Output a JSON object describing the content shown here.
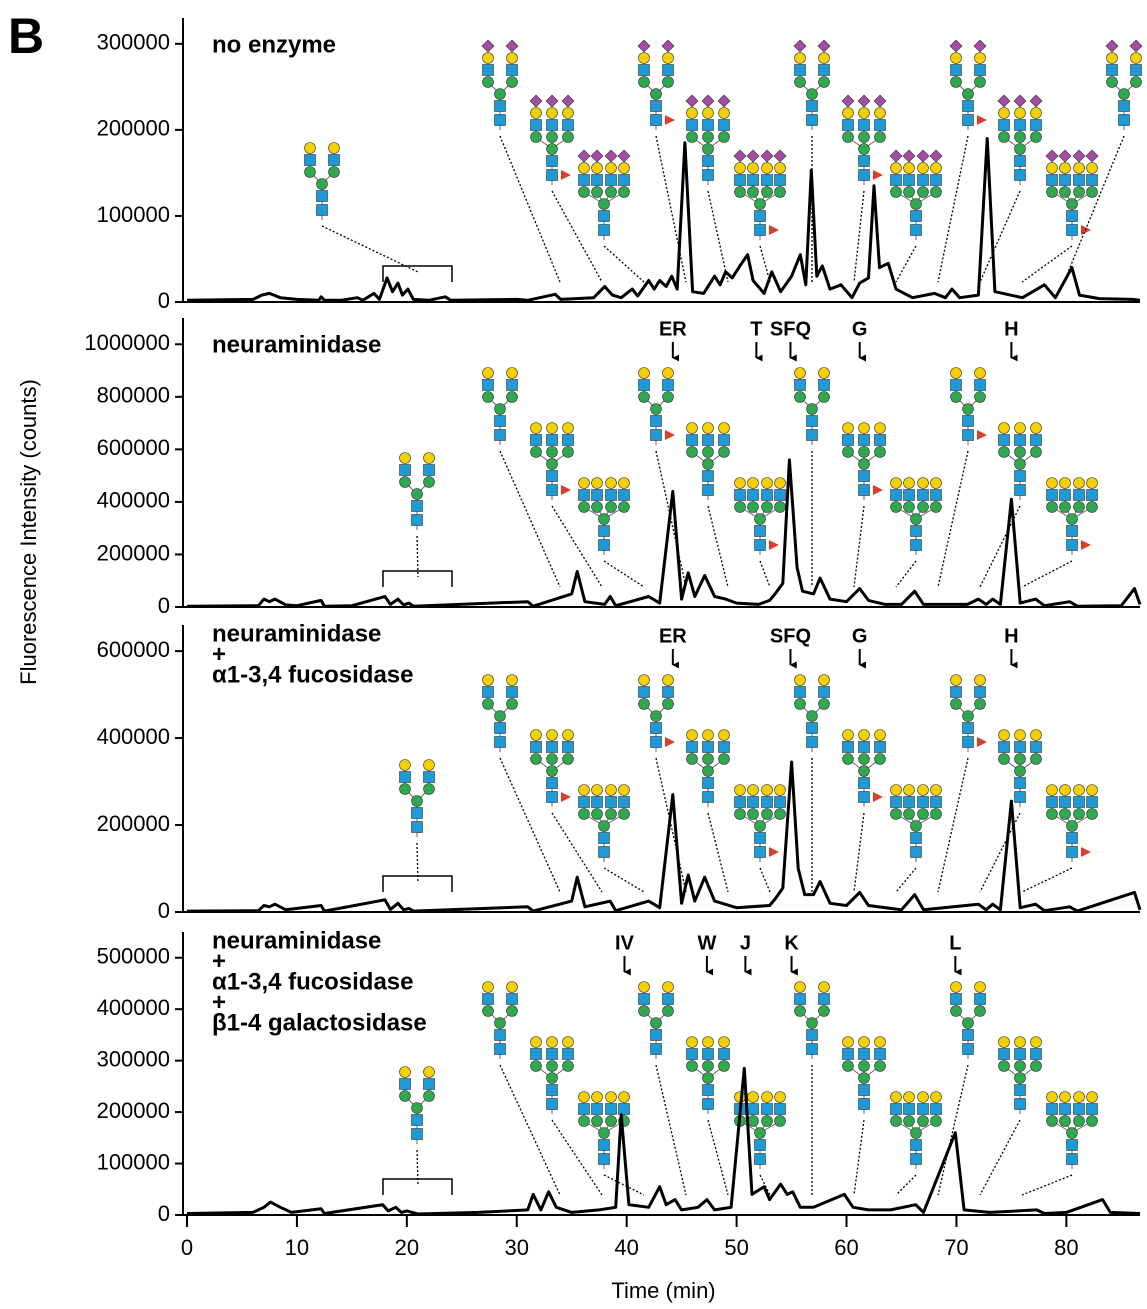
{
  "panel_label": "B",
  "ylabel": "Fluorescence Intensity (counts)",
  "chart_data": [
    {
      "type": "line",
      "title": [
        "no enzyme"
      ],
      "xlim": [
        0,
        86.7
      ],
      "ylim": [
        0,
        330000
      ],
      "yticks": [
        0,
        100000,
        200000,
        300000
      ],
      "x": [
        0,
        6,
        6.8,
        7.5,
        8.5,
        10,
        12,
        12.2,
        12.5,
        14,
        15.5,
        16,
        17,
        17.5,
        18.2,
        18.7,
        19.2,
        19.6,
        20.1,
        20.6,
        22,
        23.5,
        24,
        30,
        31,
        33.5,
        34,
        37,
        38,
        38.7,
        39.5,
        40.5,
        41,
        42,
        42.5,
        43,
        43.6,
        44.1,
        44.6,
        45.3,
        46,
        47,
        48,
        48.5,
        49,
        49.6,
        50.3,
        51,
        51.5,
        52.5,
        53.2,
        54,
        55,
        55.8,
        56.3,
        56.8,
        57.3,
        57.8,
        58.5,
        59.5,
        60.5,
        61.2,
        62,
        62.5,
        63,
        63.8,
        64.5,
        66,
        68,
        69,
        69.6,
        70.3,
        72,
        72.8,
        73.5,
        76,
        78,
        79,
        80.5,
        81.2,
        83,
        86,
        86.7
      ],
      "series": [
        {
          "color": "#000000",
          "values": [
            2000,
            3000,
            8000,
            10000,
            5000,
            3000,
            2000,
            6000,
            2000,
            2000,
            5000,
            2000,
            10000,
            3000,
            28000,
            12000,
            22000,
            8000,
            15000,
            3000,
            2000,
            6000,
            2000,
            3000,
            2000,
            9000,
            3000,
            5000,
            18000,
            8000,
            5000,
            15000,
            7000,
            25000,
            15000,
            25000,
            18000,
            30000,
            15000,
            185000,
            12000,
            10000,
            30000,
            20000,
            35000,
            28000,
            42000,
            55000,
            25000,
            10000,
            35000,
            12000,
            30000,
            55000,
            20000,
            153000,
            30000,
            42000,
            15000,
            20000,
            5000,
            22000,
            28000,
            135000,
            40000,
            45000,
            15000,
            5000,
            10000,
            5000,
            15000,
            5000,
            8000,
            190000,
            12000,
            5000,
            20000,
            5000,
            40000,
            8000,
            4000,
            3000,
            2000
          ]
        }
      ],
      "annotations": []
    },
    {
      "type": "line",
      "title": [
        "neuraminidase"
      ],
      "xlim": [
        0,
        86.7
      ],
      "ylim": [
        0,
        1100000
      ],
      "yticks": [
        0,
        200000,
        400000,
        600000,
        800000,
        1000000
      ],
      "x": [
        0,
        6.5,
        7,
        7.5,
        8,
        9,
        10,
        12.2,
        12.5,
        15,
        18,
        18.5,
        19.2,
        19.7,
        20.2,
        20.6,
        31,
        31.5,
        35,
        35.5,
        36.2,
        38,
        38.5,
        39,
        42,
        43,
        44.2,
        45,
        45.6,
        46.2,
        47.1,
        48,
        49,
        50,
        52,
        53,
        53.5,
        54.2,
        54.8,
        55.5,
        56,
        57,
        57.6,
        58.5,
        60,
        61.2,
        62,
        63.5,
        65,
        66.2,
        67,
        71,
        72,
        72.7,
        73.3,
        74,
        75,
        75.8,
        77.2,
        78,
        80.3,
        81,
        85,
        86.2,
        86.7
      ],
      "series": [
        {
          "color": "#000000",
          "values": [
            3000,
            5000,
            30000,
            20000,
            30000,
            8000,
            5000,
            25000,
            3000,
            5000,
            40000,
            10000,
            30000,
            8000,
            15000,
            3000,
            20000,
            3000,
            50000,
            135000,
            20000,
            10000,
            40000,
            5000,
            40000,
            15000,
            440000,
            30000,
            130000,
            40000,
            120000,
            40000,
            30000,
            15000,
            10000,
            25000,
            50000,
            90000,
            560000,
            150000,
            60000,
            50000,
            110000,
            30000,
            20000,
            70000,
            25000,
            10000,
            10000,
            60000,
            10000,
            10000,
            30000,
            10000,
            30000,
            10000,
            410000,
            15000,
            30000,
            5000,
            20000,
            3000,
            5000,
            70000,
            10000
          ]
        }
      ],
      "annotations": [
        {
          "text": "ER",
          "x": 44.2
        },
        {
          "text": "T",
          "x": 51.8
        },
        {
          "text": "SFQ",
          "x": 54.9
        },
        {
          "text": "G",
          "x": 61.2
        },
        {
          "text": "H",
          "x": 75
        }
      ]
    },
    {
      "type": "line",
      "title": [
        "neuraminidase",
        "+",
        "α1-3,4 fucosidase"
      ],
      "xlim": [
        0,
        86.7
      ],
      "ylim": [
        0,
        660000
      ],
      "yticks": [
        0,
        200000,
        400000,
        600000
      ],
      "x": [
        0,
        6.5,
        7,
        7.5,
        8,
        9,
        12.2,
        12.5,
        18,
        18.5,
        19.2,
        19.7,
        20.2,
        20.6,
        31,
        31.5,
        35,
        35.5,
        36.2,
        38.5,
        39,
        42,
        43,
        44.2,
        45,
        45.6,
        46.2,
        47.1,
        48,
        50,
        53,
        53.5,
        54.2,
        55,
        55.6,
        56.2,
        57,
        57.6,
        58.5,
        60,
        61.2,
        62,
        65,
        66.2,
        67,
        72,
        72.7,
        73.3,
        74,
        75,
        75.8,
        77.2,
        78,
        80.3,
        81,
        86.2,
        86.7
      ],
      "series": [
        {
          "color": "#000000",
          "values": [
            2000,
            3000,
            15000,
            12000,
            18000,
            5000,
            15000,
            2000,
            28000,
            6000,
            20000,
            5000,
            8000,
            2000,
            12000,
            2000,
            25000,
            80000,
            12000,
            25000,
            3000,
            25000,
            10000,
            270000,
            20000,
            85000,
            25000,
            80000,
            25000,
            10000,
            15000,
            30000,
            55000,
            345000,
            100000,
            40000,
            40000,
            70000,
            20000,
            15000,
            45000,
            15000,
            5000,
            40000,
            5000,
            18000,
            5000,
            18000,
            5000,
            255000,
            10000,
            18000,
            3000,
            12000,
            2000,
            45000,
            5000
          ]
        }
      ],
      "annotations": [
        {
          "text": "ER",
          "x": 44.2
        },
        {
          "text": "SFQ",
          "x": 54.9
        },
        {
          "text": "G",
          "x": 61.2
        },
        {
          "text": "H",
          "x": 75
        }
      ]
    },
    {
      "type": "line",
      "title": [
        "neuraminidase",
        "+",
        "α1-3,4 fucosidase",
        "+",
        "β1-4 galactosidase"
      ],
      "xlim": [
        0,
        86.7
      ],
      "ylim": [
        0,
        550000
      ],
      "yticks": [
        0,
        100000,
        200000,
        300000,
        400000,
        500000
      ],
      "xticks": [
        0,
        10,
        20,
        30,
        40,
        50,
        60,
        70,
        80
      ],
      "xlabel": "Time (min)",
      "x": [
        0,
        6,
        7,
        7.6,
        8.5,
        9.5,
        12.2,
        12.5,
        17.8,
        18.3,
        19,
        19.5,
        20,
        21,
        26.5,
        31,
        31.5,
        32.2,
        32.9,
        33.6,
        35,
        37.5,
        39,
        39.5,
        40.2,
        42,
        43,
        43.6,
        44.4,
        45,
        46.5,
        47.3,
        48,
        49.5,
        50.7,
        51.4,
        52.5,
        53,
        54,
        54.6,
        55.1,
        55.8,
        57,
        59.8,
        60.6,
        62,
        64,
        66.3,
        67,
        69.9,
        70.7,
        73,
        77.3,
        78,
        80,
        83.3,
        84,
        86.7
      ],
      "series": [
        {
          "color": "#000000",
          "values": [
            3000,
            5000,
            15000,
            25000,
            15000,
            5000,
            12000,
            3000,
            20000,
            8000,
            15000,
            5000,
            8000,
            2000,
            5000,
            10000,
            40000,
            10000,
            45000,
            15000,
            5000,
            10000,
            15000,
            195000,
            20000,
            15000,
            55000,
            20000,
            30000,
            10000,
            15000,
            30000,
            10000,
            15000,
            285000,
            40000,
            55000,
            30000,
            60000,
            40000,
            45000,
            15000,
            15000,
            40000,
            15000,
            10000,
            10000,
            20000,
            5000,
            160000,
            10000,
            5000,
            10000,
            3000,
            5000,
            30000,
            5000,
            3000
          ]
        }
      ],
      "annotations": [
        {
          "text": "IV",
          "x": 39.8
        },
        {
          "text": "W",
          "x": 47.3
        },
        {
          "text": "J",
          "x": 50.8
        },
        {
          "text": "K",
          "x": 55
        },
        {
          "text": "L",
          "x": 69.9
        }
      ]
    }
  ]
}
